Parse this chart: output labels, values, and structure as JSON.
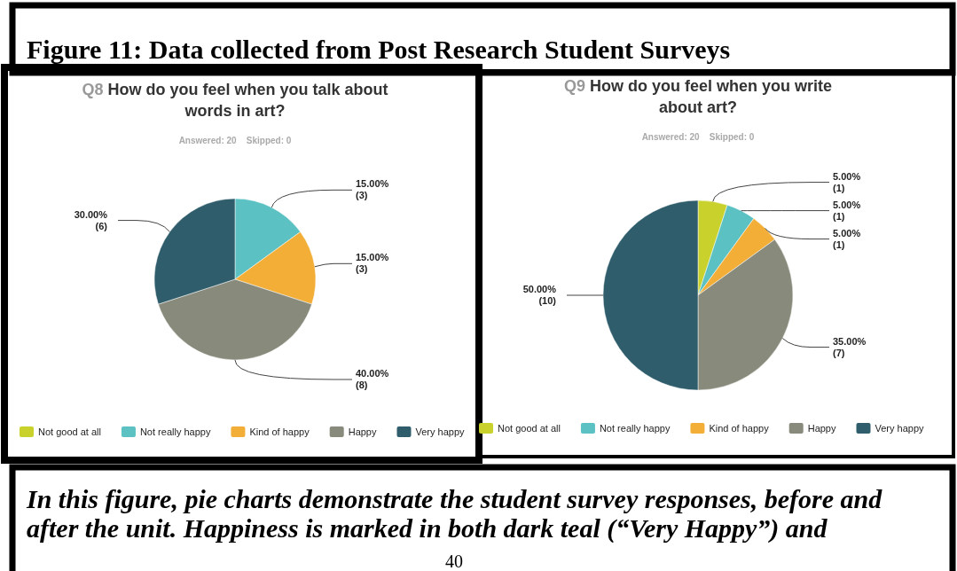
{
  "chart_data": [
    {
      "type": "pie",
      "title": "Q8 How do you feel when you talk about words in art?",
      "subtitle": "Answered: 20    Skipped: 0",
      "annotations": [
        "Figure 11: Data collected from Post Research Student Surveys"
      ],
      "categories": [
        "Not good at all",
        "Not really happy",
        "Kind of happy",
        "Happy",
        "Very happy"
      ],
      "values": [
        0,
        15,
        15,
        40,
        30
      ],
      "value_labels": [
        null,
        "15.00% (3)",
        "15.00% (3)",
        "40.00% (8)",
        "30.00% (6)"
      ],
      "colors": [
        "#c9d22c",
        "#5bc1c2",
        "#f2ae37",
        "#888a7b",
        "#2f5d6b"
      ],
      "legend": "bottom"
    },
    {
      "type": "pie",
      "title": "Q9 How do you feel when you write about art?",
      "subtitle": "Answered: 20    Skipped: 0",
      "annotations": [
        "In this figure, pie charts demonstrate the student survey responses, before and after the unit. Happiness is marked in both dark teal (“Very Happy”) and",
        "40"
      ],
      "categories": [
        "Not good at all",
        "Not really happy",
        "Kind of happy",
        "Happy",
        "Very happy"
      ],
      "values": [
        5,
        5,
        5,
        35,
        50
      ],
      "value_labels": [
        "5.00% (1)",
        "5.00% (1)",
        "5.00% (1)",
        "35.00% (7)",
        "50.00% (10)"
      ],
      "colors": [
        "#c9d22c",
        "#5bc1c2",
        "#f2ae37",
        "#888a7b",
        "#2f5d6b"
      ],
      "legend": "bottom"
    }
  ]
}
